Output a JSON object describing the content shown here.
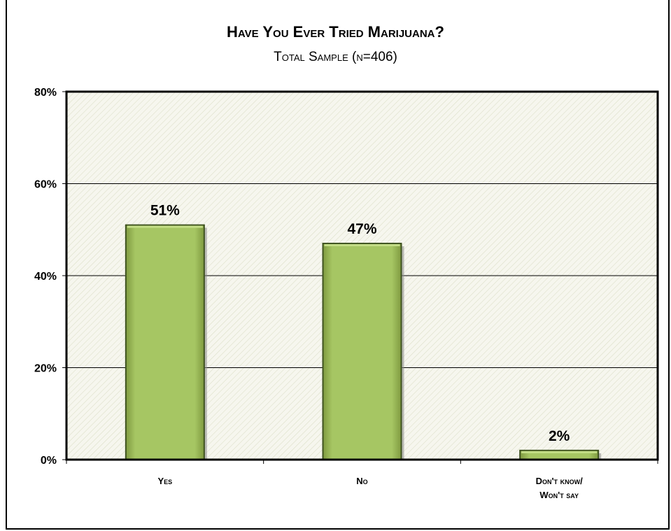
{
  "chart_data": {
    "type": "bar",
    "title": "Have You Ever Tried Marijuana?",
    "subtitle": "Total Sample (n=406)",
    "categories": [
      [
        "Yes"
      ],
      [
        "No"
      ],
      [
        "Don't know/",
        "Won't say"
      ]
    ],
    "values": [
      51,
      47,
      2
    ],
    "data_labels": [
      "51%",
      "47%",
      "2%"
    ],
    "ylim": [
      0,
      80
    ],
    "yticks": [
      0,
      20,
      40,
      60,
      80
    ],
    "ytick_labels": [
      "0%",
      "20%",
      "40%",
      "60%",
      "80%"
    ],
    "grid": true,
    "legend": "none",
    "colors": {
      "bar_fill": "#a3c45f",
      "bar_stroke": "#3f5320",
      "plot_background": "#f6f6ee",
      "hatch": "#d9dcc3"
    }
  }
}
